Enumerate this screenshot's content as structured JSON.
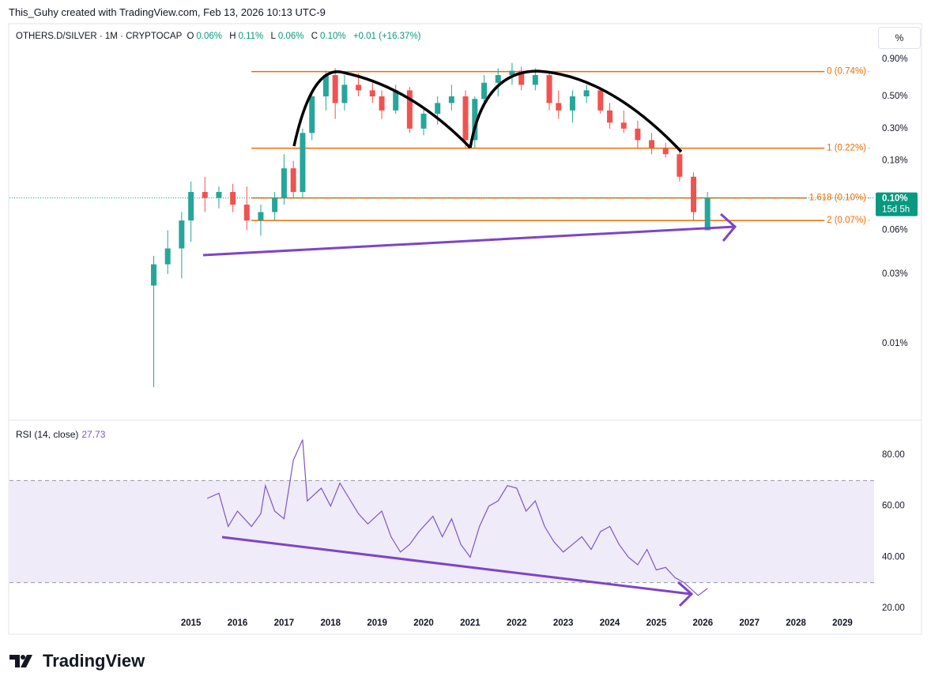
{
  "header": {
    "credit": "This_Guhy created with TradingView.com, Feb 13, 2026 10:13 UTC-9",
    "symbol": "OTHERS.D/SILVER · 1M · CRYPTOCAP",
    "open_label": "O",
    "open": "0.06%",
    "high_label": "H",
    "high": "0.11%",
    "low_label": "L",
    "low": "0.06%",
    "close_label": "C",
    "close": "0.10%",
    "change": "+0.01 (+16.37%)",
    "scale_button": "%",
    "logo": "TradingView"
  },
  "chart_data": {
    "type": "candlestick",
    "log_scale": true,
    "grid": false,
    "up_color": "#26a69a",
    "down_color": "#ef5350",
    "x": [
      2014.2,
      2014.5,
      2014.8,
      2015.0,
      2015.3,
      2015.6,
      2015.9,
      2016.2,
      2016.5,
      2016.8,
      2017.0,
      2017.2,
      2017.4,
      2017.6,
      2017.9,
      2018.1,
      2018.3,
      2018.6,
      2018.9,
      2019.1,
      2019.4,
      2019.7,
      2020.0,
      2020.3,
      2020.6,
      2020.9,
      2021.1,
      2021.3,
      2021.6,
      2021.9,
      2022.1,
      2022.4,
      2022.7,
      2022.9,
      2023.2,
      2023.5,
      2023.8,
      2024.0,
      2024.3,
      2024.6,
      2024.9,
      2025.2,
      2025.5,
      2025.8,
      2026.1
    ],
    "open": [
      0.025,
      0.035,
      0.045,
      0.07,
      0.11,
      0.1,
      0.11,
      0.09,
      0.07,
      0.08,
      0.1,
      0.16,
      0.11,
      0.28,
      0.5,
      0.7,
      0.45,
      0.6,
      0.55,
      0.5,
      0.4,
      0.55,
      0.3,
      0.38,
      0.45,
      0.5,
      0.25,
      0.48,
      0.62,
      0.7,
      0.75,
      0.6,
      0.7,
      0.45,
      0.4,
      0.5,
      0.55,
      0.4,
      0.33,
      0.3,
      0.25,
      0.22,
      0.2,
      0.14,
      0.06
    ],
    "high": [
      0.04,
      0.06,
      0.08,
      0.13,
      0.14,
      0.12,
      0.125,
      0.12,
      0.09,
      0.11,
      0.2,
      0.18,
      0.3,
      0.55,
      0.75,
      0.78,
      0.7,
      0.72,
      0.62,
      0.55,
      0.6,
      0.58,
      0.42,
      0.5,
      0.6,
      0.55,
      0.5,
      0.7,
      0.78,
      0.85,
      0.8,
      0.78,
      0.75,
      0.55,
      0.55,
      0.6,
      0.58,
      0.45,
      0.4,
      0.34,
      0.28,
      0.24,
      0.21,
      0.15,
      0.11
    ],
    "low": [
      0.005,
      0.03,
      0.028,
      0.05,
      0.08,
      0.085,
      0.08,
      0.06,
      0.055,
      0.07,
      0.09,
      0.1,
      0.1,
      0.25,
      0.4,
      0.35,
      0.4,
      0.5,
      0.45,
      0.35,
      0.38,
      0.28,
      0.27,
      0.32,
      0.4,
      0.22,
      0.22,
      0.42,
      0.5,
      0.6,
      0.55,
      0.55,
      0.4,
      0.35,
      0.33,
      0.45,
      0.38,
      0.3,
      0.28,
      0.22,
      0.2,
      0.19,
      0.13,
      0.07,
      0.06
    ],
    "close": [
      0.035,
      0.045,
      0.07,
      0.11,
      0.1,
      0.11,
      0.09,
      0.07,
      0.08,
      0.1,
      0.16,
      0.11,
      0.28,
      0.5,
      0.7,
      0.45,
      0.6,
      0.55,
      0.5,
      0.4,
      0.55,
      0.3,
      0.38,
      0.45,
      0.5,
      0.25,
      0.48,
      0.62,
      0.7,
      0.75,
      0.6,
      0.7,
      0.45,
      0.4,
      0.5,
      0.55,
      0.4,
      0.33,
      0.3,
      0.25,
      0.22,
      0.2,
      0.14,
      0.08,
      0.1
    ],
    "xlim": [
      2011.1,
      2029.68
    ],
    "xticks": [
      2015,
      2016,
      2017,
      2018,
      2019,
      2020,
      2021,
      2022,
      2023,
      2024,
      2025,
      2026,
      2027,
      2028,
      2029
    ],
    "ylim": [
      0.003,
      1.58
    ],
    "yticks": [
      {
        "value": 0.9,
        "label": "0.90%"
      },
      {
        "value": 0.5,
        "label": "0.50%"
      },
      {
        "value": 0.3,
        "label": "0.30%"
      },
      {
        "value": 0.18,
        "label": "0.18%"
      },
      {
        "value": 0.06,
        "label": "0.06%"
      },
      {
        "value": 0.03,
        "label": "0.03%"
      },
      {
        "value": 0.01,
        "label": "0.01%"
      }
    ],
    "fib_color": "#ef6c00",
    "fib_start": 2016.3,
    "fib_levels": [
      {
        "value": 0.74,
        "label": "0 (0.74%)"
      },
      {
        "value": 0.22,
        "label": "1 (0.22%)"
      },
      {
        "value": 0.1,
        "label": "1.618 (0.10%)"
      },
      {
        "value": 0.07,
        "label": "2 (0.07%)"
      }
    ],
    "last_price": {
      "value": 0.1,
      "label": "0.10%",
      "countdown": "15d 5h",
      "color": "#089981"
    },
    "rsi": {
      "title": "RSI (14, close)",
      "color": "#7e57c2",
      "band": [
        30,
        70
      ],
      "ylim": [
        9.8,
        93.3
      ],
      "yticks": [
        {
          "value": 80,
          "label": "80.00"
        },
        {
          "value": 60,
          "label": "60.00"
        },
        {
          "value": 40,
          "label": "40.00"
        },
        {
          "value": 20,
          "label": "20.00"
        }
      ],
      "x": [
        2015.35,
        2015.6,
        2015.8,
        2016.0,
        2016.3,
        2016.5,
        2016.6,
        2016.8,
        2017.0,
        2017.2,
        2017.4,
        2017.5,
        2017.8,
        2018.0,
        2018.2,
        2018.4,
        2018.6,
        2018.8,
        2019.1,
        2019.3,
        2019.5,
        2019.7,
        2019.9,
        2020.2,
        2020.4,
        2020.6,
        2020.8,
        2021.0,
        2021.2,
        2021.4,
        2021.6,
        2021.8,
        2022.0,
        2022.2,
        2022.4,
        2022.6,
        2022.8,
        2023.0,
        2023.2,
        2023.4,
        2023.6,
        2023.8,
        2024.0,
        2024.2,
        2024.4,
        2024.6,
        2024.8,
        2025.0,
        2025.2,
        2025.4,
        2025.6,
        2025.9,
        2026.1
      ],
      "values": [
        63,
        65,
        52,
        58,
        52,
        57,
        68,
        58,
        55,
        78,
        86,
        62,
        67,
        60,
        69,
        63,
        57,
        53,
        58,
        48,
        42,
        45,
        50,
        56,
        48,
        55,
        45,
        40,
        52,
        60,
        62,
        68,
        67,
        58,
        62,
        52,
        46,
        42,
        45,
        48,
        43,
        50,
        52,
        45,
        40,
        37,
        43,
        35,
        36,
        32,
        30,
        25,
        27.73
      ]
    }
  }
}
